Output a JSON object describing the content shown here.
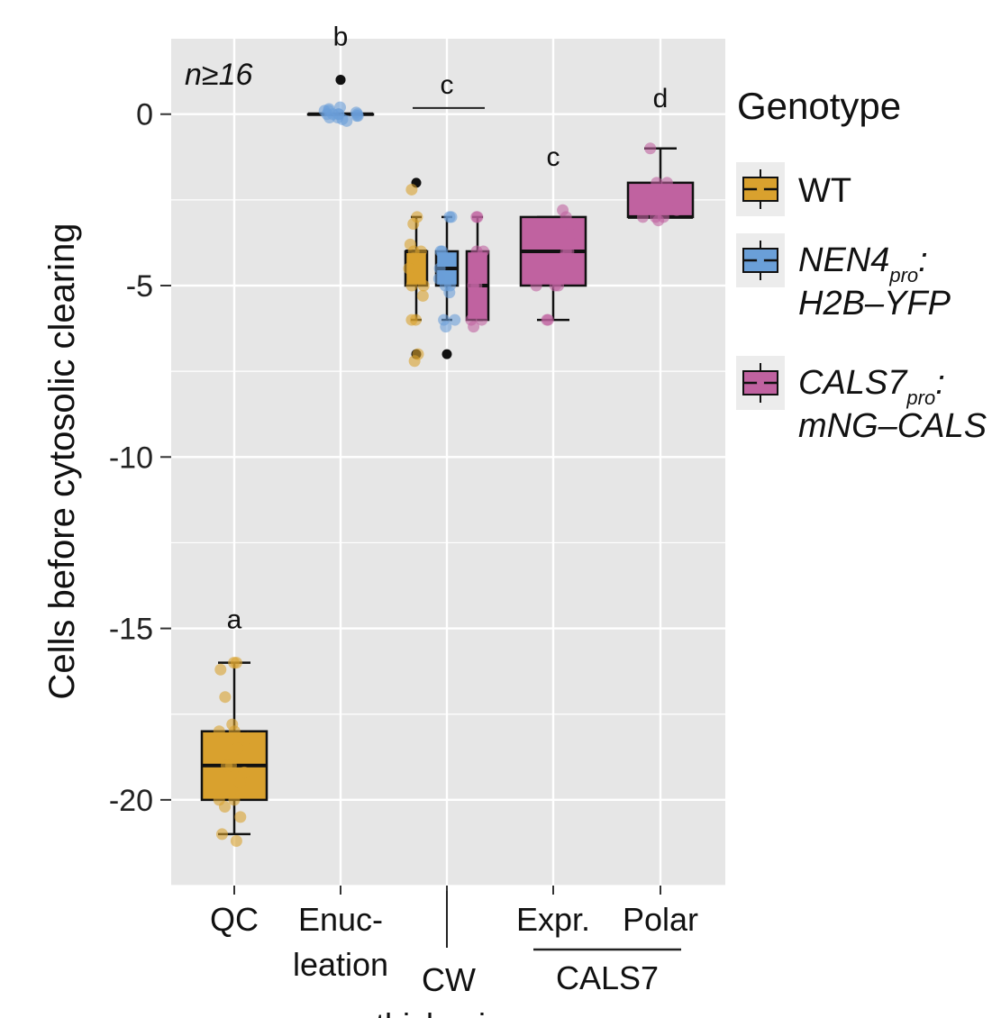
{
  "chart_data": {
    "type": "box",
    "title": "",
    "xlabel": "",
    "ylabel": "Cells before cytosolic clearing",
    "ylim": [
      -22.5,
      2.2
    ],
    "yticks": [
      0,
      -5,
      -10,
      -15,
      -20
    ],
    "ytick_labels": [
      "0",
      "-5",
      "-10",
      "-15",
      "-20"
    ],
    "annotation": "n≥16",
    "grid": true,
    "legend": {
      "title": "Genotype",
      "placement": "right",
      "entries": [
        {
          "key": "WT",
          "lines": [
            "WT"
          ],
          "color": "#d9a12e"
        },
        {
          "key": "NEN4",
          "lines": [
            "NEN4",
            "pro",
            ":",
            "H2B–YFP"
          ],
          "color": "#6a9fd8"
        },
        {
          "key": "CALS7",
          "lines": [
            "CALS7",
            "pro",
            ":",
            "mNG–CALS"
          ],
          "color": "#c062a0"
        }
      ]
    },
    "categories": [
      {
        "id": "QC",
        "label_lines": [
          "QC"
        ]
      },
      {
        "id": "Enucleation",
        "label_lines": [
          "Enuc-",
          "leation"
        ]
      },
      {
        "id": "CW",
        "label_lines": [
          "CW",
          "thickening"
        ]
      },
      {
        "id": "Expr",
        "label_lines": [
          "Expr."
        ]
      },
      {
        "id": "Polar",
        "label_lines": [
          "Polar"
        ]
      }
    ],
    "group_label": {
      "text": "CALS7",
      "spans": [
        "Expr",
        "Polar"
      ]
    },
    "boxes": [
      {
        "category": "QC",
        "genotype": "WT",
        "q1": -20,
        "median": -19,
        "q3": -18,
        "whisker_low": -21,
        "whisker_high": -16,
        "outliers": [],
        "points": [
          -16,
          -16,
          -16.2,
          -17,
          -17.8,
          -18,
          -18,
          -18.2,
          -18.5,
          -19,
          -19,
          -19.2,
          -19.5,
          -20,
          -20,
          -20.2,
          -20.5,
          -21,
          -21.2
        ]
      },
      {
        "category": "Enucleation",
        "genotype": "NEN4",
        "q1": 0,
        "median": 0,
        "q3": 0,
        "whisker_low": 0,
        "whisker_high": 0,
        "outliers": [
          1,
          1
        ],
        "points": [
          0.2,
          0.15,
          0.1,
          0.05,
          0,
          0,
          0,
          -0.05,
          -0.1,
          -0.1,
          -0.15,
          -0.2,
          0,
          0.1,
          -0.05,
          0
        ]
      },
      {
        "category": "CW",
        "genotype": "WT",
        "q1": -5,
        "median": -4,
        "q3": -4,
        "whisker_low": -6,
        "whisker_high": -3,
        "outliers": [
          -2,
          -7
        ],
        "points": [
          -2.2,
          -3,
          -3.2,
          -3.8,
          -4,
          -4,
          -4.2,
          -4.5,
          -5,
          -5,
          -5.3,
          -6,
          -6,
          -7,
          -7.2
        ]
      },
      {
        "category": "CW",
        "genotype": "NEN4",
        "q1": -5,
        "median": -4.5,
        "q3": -4,
        "whisker_low": -6,
        "whisker_high": -3,
        "outliers": [
          -7
        ],
        "points": [
          -3,
          -3,
          -4,
          -4,
          -4.2,
          -4.5,
          -4.8,
          -5,
          -5,
          -5.2,
          -6,
          -6,
          -6.2
        ]
      },
      {
        "category": "CW",
        "genotype": "CALS7",
        "q1": -6,
        "median": -5,
        "q3": -4,
        "whisker_low": -6,
        "whisker_high": -3,
        "outliers": [],
        "points": [
          -3,
          -3,
          -4,
          -4,
          -5,
          -5,
          -5,
          -6,
          -6,
          -6.2
        ]
      },
      {
        "category": "Expr",
        "genotype": "CALS7",
        "q1": -5,
        "median": -4,
        "q3": -3,
        "whisker_low": -6,
        "whisker_high": -3,
        "outliers": [],
        "points": [
          -2.8,
          -3,
          -3.5,
          -4,
          -4,
          -4.2,
          -5,
          -5,
          -5,
          -6,
          -6
        ]
      },
      {
        "category": "Polar",
        "genotype": "CALS7",
        "q1": -3,
        "median": -3,
        "q3": -2,
        "whisker_low": -3,
        "whisker_high": -1,
        "outliers": [],
        "points": [
          -1,
          -2,
          -2,
          -2.2,
          -2.5,
          -2.8,
          -3,
          -3,
          -3,
          -3.1
        ]
      }
    ],
    "significance": [
      {
        "label": "a",
        "category": "QC",
        "y": -15
      },
      {
        "label": "b",
        "category": "Enucleation",
        "y": 2
      },
      {
        "label": "c",
        "category": "CW",
        "y": 0.6,
        "bracket": true
      },
      {
        "label": "c",
        "category": "Expr",
        "y": -1.5
      },
      {
        "label": "d",
        "category": "Polar",
        "y": 0.2
      }
    ]
  }
}
